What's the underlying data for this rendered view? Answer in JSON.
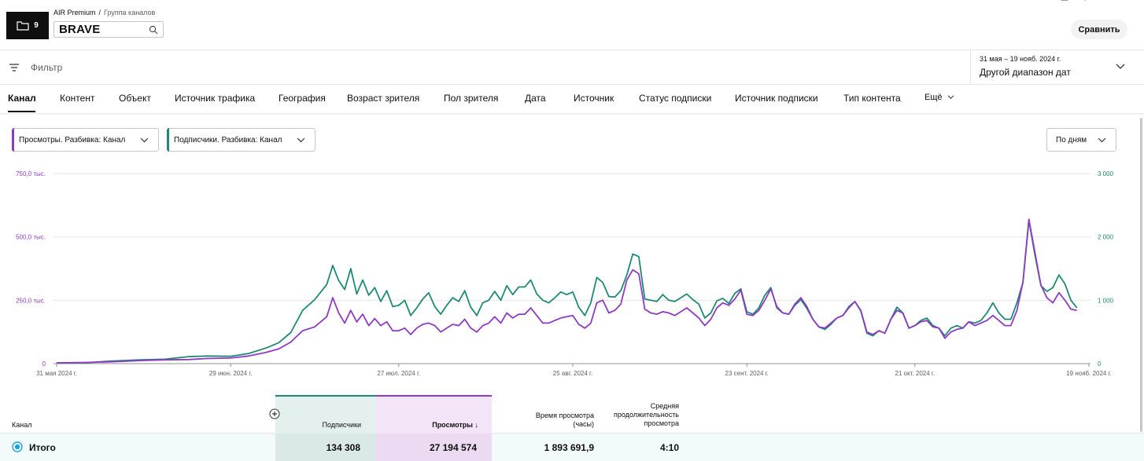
{
  "header": {
    "folder_count": "9",
    "breadcrumb_root": "AIR Premium",
    "breadcrumb_sep": "/",
    "breadcrumb_sub": "Группа каналов",
    "channel_name": "BRAVE",
    "compare_label": "Сравнить"
  },
  "filter": {
    "placeholder": "Фильтр",
    "date_range_small": "31 мая – 19 нояб. 2024 г.",
    "date_range_main": "Другой диапазон дат"
  },
  "tabs": [
    {
      "label": "Канал",
      "active": true
    },
    {
      "label": "Контент"
    },
    {
      "label": "Объект"
    },
    {
      "label": "Источник трафика"
    },
    {
      "label": "География"
    },
    {
      "label": "Возраст зрителя"
    },
    {
      "label": "Пол зрителя"
    },
    {
      "label": "Дата"
    },
    {
      "label": "Источник"
    },
    {
      "label": "Статус подписки"
    },
    {
      "label": "Источник подписки"
    },
    {
      "label": "Тип контента"
    },
    {
      "label": "Ещё"
    }
  ],
  "metrics": {
    "primary": "Просмотры. Разбивка: Канал",
    "secondary": "Подписчики. Разбивка: Канал",
    "period": "По дням"
  },
  "colors": {
    "views": "#8e3bc3",
    "subscribers": "#1e8a76",
    "grid": "#e5e5e5"
  },
  "chart_data": {
    "type": "line",
    "left_axis": {
      "ticks": [
        "0",
        "250,0 тыс.",
        "500,0 тыс.",
        "750,0 тыс."
      ],
      "range": [
        0,
        750000
      ]
    },
    "right_axis": {
      "ticks": [
        "0",
        "1 000",
        "2 000",
        "3 000"
      ],
      "range": [
        0,
        3000
      ]
    },
    "x_ticks": [
      {
        "label": "31 мая 2024 г.",
        "day": 0
      },
      {
        "label": "29 июн. 2024 г.",
        "day": 29
      },
      {
        "label": "27 июл. 2024 г.",
        "day": 57
      },
      {
        "label": "25 авг. 2024 г.",
        "day": 86
      },
      {
        "label": "23 сент. 2024 г.",
        "day": 115
      },
      {
        "label": "21 окт. 2024 г.",
        "day": 143
      },
      {
        "label": "19 нояб. 2024 г.",
        "day": 172
      }
    ],
    "series": [
      {
        "axis": "right",
        "color": "#1e8a76",
        "points": [
          [
            0,
            10
          ],
          [
            5,
            15
          ],
          [
            9,
            40
          ],
          [
            14,
            60
          ],
          [
            18,
            70
          ],
          [
            22,
            110
          ],
          [
            25,
            120
          ],
          [
            29,
            115
          ],
          [
            32,
            160
          ],
          [
            35,
            250
          ],
          [
            37,
            330
          ],
          [
            39,
            490
          ],
          [
            41,
            840
          ],
          [
            43,
            1010
          ],
          [
            45,
            1250
          ],
          [
            46,
            1550
          ],
          [
            47,
            1310
          ],
          [
            48,
            1170
          ],
          [
            49,
            1500
          ],
          [
            50,
            1100
          ],
          [
            51,
            1320
          ],
          [
            52,
            1080
          ],
          [
            53,
            1200
          ],
          [
            54,
            980
          ],
          [
            55,
            1150
          ],
          [
            56,
            900
          ],
          [
            57,
            920
          ],
          [
            58,
            1000
          ],
          [
            59,
            760
          ],
          [
            60,
            880
          ],
          [
            61,
            1020
          ],
          [
            62,
            1120
          ],
          [
            63,
            900
          ],
          [
            64,
            780
          ],
          [
            65,
            920
          ],
          [
            66,
            1040
          ],
          [
            67,
            980
          ],
          [
            68,
            1150
          ],
          [
            69,
            890
          ],
          [
            70,
            760
          ],
          [
            71,
            960
          ],
          [
            72,
            1000
          ],
          [
            73,
            1140
          ],
          [
            74,
            1000
          ],
          [
            75,
            1230
          ],
          [
            76,
            1090
          ],
          [
            77,
            1210
          ],
          [
            78,
            1210
          ],
          [
            79,
            1320
          ],
          [
            80,
            1100
          ],
          [
            81,
            1000
          ],
          [
            82,
            960
          ],
          [
            83,
            1040
          ],
          [
            84,
            1130
          ],
          [
            85,
            1090
          ],
          [
            86,
            1130
          ],
          [
            87,
            890
          ],
          [
            88,
            760
          ],
          [
            89,
            960
          ],
          [
            90,
            1360
          ],
          [
            91,
            1280
          ],
          [
            92,
            1060
          ],
          [
            93,
            1050
          ],
          [
            94,
            1150
          ],
          [
            95,
            1400
          ],
          [
            96,
            1730
          ],
          [
            97,
            1690
          ],
          [
            98,
            1020
          ],
          [
            99,
            1000
          ],
          [
            100,
            980
          ],
          [
            101,
            1090
          ],
          [
            102,
            1000
          ],
          [
            103,
            980
          ],
          [
            104,
            1040
          ],
          [
            105,
            1100
          ],
          [
            106,
            1010
          ],
          [
            107,
            940
          ],
          [
            108,
            720
          ],
          [
            109,
            800
          ],
          [
            110,
            990
          ],
          [
            111,
            1030
          ],
          [
            112,
            950
          ],
          [
            113,
            1110
          ],
          [
            114,
            1180
          ],
          [
            115,
            820
          ],
          [
            116,
            780
          ],
          [
            117,
            880
          ],
          [
            118,
            1080
          ],
          [
            119,
            1200
          ],
          [
            120,
            880
          ],
          [
            121,
            800
          ],
          [
            122,
            780
          ],
          [
            123,
            920
          ],
          [
            124,
            1010
          ],
          [
            125,
            870
          ],
          [
            126,
            700
          ],
          [
            127,
            580
          ],
          [
            128,
            540
          ],
          [
            129,
            620
          ],
          [
            130,
            720
          ],
          [
            131,
            760
          ],
          [
            132,
            900
          ],
          [
            133,
            980
          ],
          [
            134,
            830
          ],
          [
            135,
            480
          ],
          [
            136,
            440
          ],
          [
            137,
            520
          ],
          [
            138,
            480
          ],
          [
            139,
            700
          ],
          [
            140,
            890
          ],
          [
            141,
            800
          ],
          [
            142,
            560
          ],
          [
            143,
            600
          ],
          [
            144,
            680
          ],
          [
            145,
            720
          ],
          [
            146,
            600
          ],
          [
            147,
            560
          ],
          [
            148,
            440
          ],
          [
            149,
            560
          ],
          [
            150,
            600
          ],
          [
            151,
            560
          ],
          [
            152,
            660
          ],
          [
            153,
            640
          ],
          [
            154,
            680
          ],
          [
            155,
            800
          ],
          [
            156,
            960
          ],
          [
            157,
            800
          ],
          [
            158,
            700
          ],
          [
            159,
            700
          ],
          [
            160,
            960
          ],
          [
            161,
            1280
          ],
          [
            162,
            2260
          ],
          [
            163,
            1720
          ],
          [
            164,
            1230
          ],
          [
            165,
            1140
          ],
          [
            166,
            1200
          ],
          [
            167,
            1400
          ],
          [
            168,
            1260
          ],
          [
            169,
            1000
          ],
          [
            170,
            880
          ]
        ]
      },
      {
        "axis": "left",
        "color": "#8e3bc3",
        "points": [
          [
            0,
            3000
          ],
          [
            5,
            4500
          ],
          [
            9,
            7000
          ],
          [
            14,
            12000
          ],
          [
            18,
            15000
          ],
          [
            22,
            16000
          ],
          [
            25,
            20000
          ],
          [
            29,
            22000
          ],
          [
            32,
            30000
          ],
          [
            35,
            45000
          ],
          [
            37,
            58000
          ],
          [
            39,
            85000
          ],
          [
            41,
            130000
          ],
          [
            43,
            145000
          ],
          [
            45,
            185000
          ],
          [
            46,
            260000
          ],
          [
            47,
            200000
          ],
          [
            48,
            160000
          ],
          [
            49,
            210000
          ],
          [
            50,
            165000
          ],
          [
            51,
            195000
          ],
          [
            52,
            150000
          ],
          [
            53,
            178000
          ],
          [
            54,
            150000
          ],
          [
            55,
            165000
          ],
          [
            56,
            130000
          ],
          [
            57,
            130000
          ],
          [
            58,
            140000
          ],
          [
            59,
            115000
          ],
          [
            60,
            140000
          ],
          [
            61,
            155000
          ],
          [
            62,
            160000
          ],
          [
            63,
            150000
          ],
          [
            64,
            125000
          ],
          [
            65,
            140000
          ],
          [
            66,
            155000
          ],
          [
            67,
            150000
          ],
          [
            68,
            175000
          ],
          [
            69,
            140000
          ],
          [
            70,
            125000
          ],
          [
            71,
            150000
          ],
          [
            72,
            160000
          ],
          [
            73,
            185000
          ],
          [
            74,
            160000
          ],
          [
            75,
            200000
          ],
          [
            76,
            180000
          ],
          [
            77,
            195000
          ],
          [
            78,
            195000
          ],
          [
            79,
            220000
          ],
          [
            80,
            190000
          ],
          [
            81,
            160000
          ],
          [
            82,
            160000
          ],
          [
            83,
            170000
          ],
          [
            84,
            180000
          ],
          [
            85,
            185000
          ],
          [
            86,
            190000
          ],
          [
            87,
            155000
          ],
          [
            88,
            140000
          ],
          [
            89,
            160000
          ],
          [
            90,
            240000
          ],
          [
            91,
            250000
          ],
          [
            92,
            200000
          ],
          [
            93,
            210000
          ],
          [
            94,
            235000
          ],
          [
            95,
            330000
          ],
          [
            96,
            370000
          ],
          [
            97,
            355000
          ],
          [
            98,
            215000
          ],
          [
            99,
            200000
          ],
          [
            100,
            195000
          ],
          [
            101,
            205000
          ],
          [
            102,
            200000
          ],
          [
            103,
            190000
          ],
          [
            104,
            205000
          ],
          [
            105,
            220000
          ],
          [
            106,
            200000
          ],
          [
            107,
            180000
          ],
          [
            108,
            150000
          ],
          [
            109,
            175000
          ],
          [
            110,
            220000
          ],
          [
            111,
            240000
          ],
          [
            112,
            230000
          ],
          [
            113,
            255000
          ],
          [
            114,
            290000
          ],
          [
            115,
            195000
          ],
          [
            116,
            190000
          ],
          [
            117,
            210000
          ],
          [
            118,
            250000
          ],
          [
            119,
            295000
          ],
          [
            120,
            225000
          ],
          [
            121,
            200000
          ],
          [
            122,
            195000
          ],
          [
            123,
            235000
          ],
          [
            124,
            260000
          ],
          [
            125,
            225000
          ],
          [
            126,
            175000
          ],
          [
            127,
            145000
          ],
          [
            128,
            140000
          ],
          [
            129,
            160000
          ],
          [
            130,
            180000
          ],
          [
            131,
            190000
          ],
          [
            132,
            220000
          ],
          [
            133,
            245000
          ],
          [
            134,
            210000
          ],
          [
            135,
            125000
          ],
          [
            136,
            115000
          ],
          [
            137,
            130000
          ],
          [
            138,
            120000
          ],
          [
            139,
            175000
          ],
          [
            140,
            210000
          ],
          [
            141,
            200000
          ],
          [
            142,
            140000
          ],
          [
            143,
            150000
          ],
          [
            144,
            165000
          ],
          [
            145,
            170000
          ],
          [
            146,
            145000
          ],
          [
            147,
            140000
          ],
          [
            148,
            100000
          ],
          [
            149,
            125000
          ],
          [
            150,
            135000
          ],
          [
            151,
            140000
          ],
          [
            152,
            165000
          ],
          [
            153,
            150000
          ],
          [
            154,
            160000
          ],
          [
            155,
            170000
          ],
          [
            156,
            190000
          ],
          [
            157,
            170000
          ],
          [
            158,
            150000
          ],
          [
            159,
            150000
          ],
          [
            160,
            210000
          ],
          [
            161,
            320000
          ],
          [
            162,
            570000
          ],
          [
            163,
            440000
          ],
          [
            164,
            310000
          ],
          [
            165,
            260000
          ],
          [
            166,
            240000
          ],
          [
            167,
            280000
          ],
          [
            168,
            250000
          ],
          [
            169,
            215000
          ],
          [
            170,
            210000
          ]
        ]
      }
    ],
    "grid": true
  },
  "table": {
    "col_channel": "Канал",
    "col_subscribers": "Подписчики",
    "col_views": "Просмотры",
    "col_watchtime_1": "Время просмотра",
    "col_watchtime_2": "(часы)",
    "col_avgdur_1": "Средняя",
    "col_avgdur_2": "продолжительность",
    "col_avgdur_3": "просмотра",
    "total_label": "Итого",
    "total_subscribers": "134 308",
    "total_views": "27 194 574",
    "total_watchtime": "1 893 691,9",
    "total_avgdur": "4:10"
  }
}
